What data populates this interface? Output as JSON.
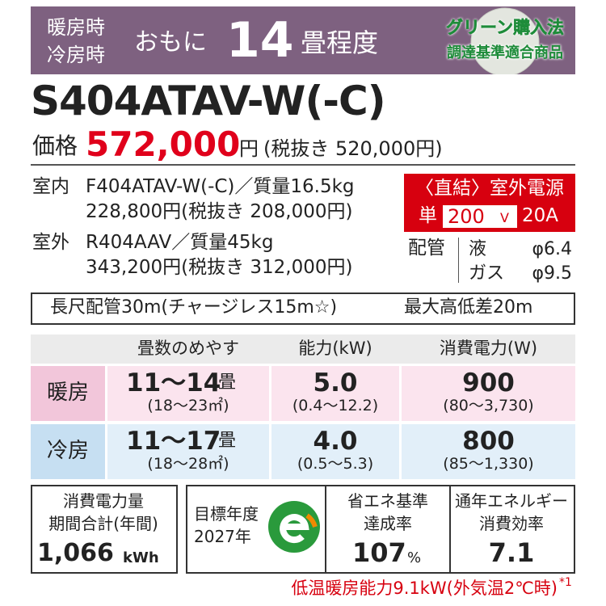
{
  "header": {
    "line1": "暖房時",
    "line2": "冷房時",
    "prefix": "おもに",
    "size": "14",
    "suffix": "畳程度",
    "badge": {
      "line1": "グリーン購入法",
      "line2": "調達基準適合商品"
    }
  },
  "model": "S404ATAV-W(-C)",
  "price": {
    "label": "価格",
    "value": "572,000",
    "unit": "円",
    "excl": "(税抜き 520,000円)"
  },
  "indoor": {
    "label": "室内",
    "spec": "F404ATAV-W(-C)／質量16.5kg",
    "price": "228,800円(税抜き 208,000円)"
  },
  "outdoor": {
    "label": "室外",
    "spec": "R404AAV／質量45kg",
    "price": "343,200円(税抜き 312,000円)"
  },
  "power": {
    "title": "〈直結〉室外電源",
    "phase": "単",
    "voltage": "200",
    "voltage_unit": "V",
    "current": "20A"
  },
  "piping": {
    "label": "配管",
    "liquid": "液",
    "liquid_size": "φ6.4",
    "gas": "ガス",
    "gas_size": "φ9.5"
  },
  "notes": {
    "pipe": "長尺配管30m(チャージレス15m☆)",
    "height": "最大高低差20m"
  },
  "table": {
    "headers": [
      "畳数のめやす",
      "能力(kW)",
      "消費電力(W)"
    ],
    "rows": [
      {
        "label": "暖房",
        "area": "11～14",
        "area_unit": "畳",
        "area_range": "(18～23㎡)",
        "capacity": "5.0",
        "capacity_range": "(0.4～12.2)",
        "power": "900",
        "power_range": "(80～3,730)"
      },
      {
        "label": "冷房",
        "area": "11～17",
        "area_unit": "畳",
        "area_range": "(18～28㎡)",
        "capacity": "4.0",
        "capacity_range": "(0.5～5.3)",
        "power": "800",
        "power_range": "(85～1,330)"
      }
    ]
  },
  "annual": {
    "line1": "消費電力量",
    "line2": "期間合計(年間)",
    "value": "1,066",
    "unit": "kWh"
  },
  "target": {
    "line1": "目標年度",
    "line2": "2027年"
  },
  "achievement": {
    "line1": "省エネ基準",
    "line2": "達成率",
    "value": "107",
    "unit": "%"
  },
  "apf": {
    "line1": "通年エネルギー",
    "line2": "消費効率",
    "value": "7.1"
  },
  "footnote": {
    "text": "低温暖房能力9.1kW(外気温2℃時)",
    "mark": "*1"
  }
}
